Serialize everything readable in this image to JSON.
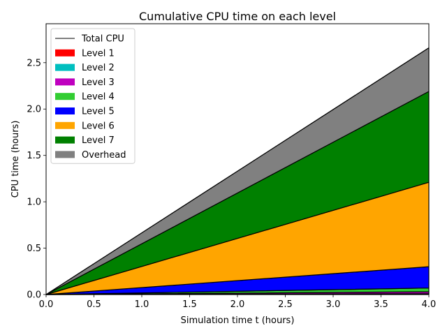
{
  "chart_data": {
    "type": "area",
    "stacked": true,
    "title": "Cumulative CPU time on each level",
    "xlabel": "Simulation time t (hours)",
    "ylabel": "CPU time (hours)",
    "xlim": [
      0,
      4.0
    ],
    "ylim": [
      0,
      2.92
    ],
    "xticks": [
      0.0,
      0.5,
      1.0,
      1.5,
      2.0,
      2.5,
      3.0,
      3.5,
      4.0
    ],
    "yticks": [
      0.0,
      0.5,
      1.0,
      1.5,
      2.0,
      2.5
    ],
    "xtick_labels": [
      "0.0",
      "0.5",
      "1.0",
      "1.5",
      "2.0",
      "2.5",
      "3.0",
      "3.5",
      "4.0"
    ],
    "ytick_labels": [
      "0.0",
      "0.5",
      "1.0",
      "1.5",
      "2.0",
      "2.5"
    ],
    "grid": false,
    "legend_position": "top-left",
    "x": [
      0.0,
      4.0
    ],
    "total_line": {
      "name": "Total CPU",
      "color": "#000000",
      "values": [
        0.0,
        2.66
      ]
    },
    "series": [
      {
        "name": "Level 1",
        "color": "#ff0000",
        "values": [
          0.0,
          0.005
        ]
      },
      {
        "name": "Level 2",
        "color": "#00bfbf",
        "values": [
          0.0,
          0.005
        ]
      },
      {
        "name": "Level 3",
        "color": "#bf00bf",
        "values": [
          0.0,
          0.02
        ]
      },
      {
        "name": "Level 4",
        "color": "#32cd32",
        "values": [
          0.0,
          0.04
        ]
      },
      {
        "name": "Level 5",
        "color": "#0000ff",
        "values": [
          0.0,
          0.23
        ]
      },
      {
        "name": "Level 6",
        "color": "#ffa500",
        "values": [
          0.0,
          0.91
        ]
      },
      {
        "name": "Level 7",
        "color": "#008000",
        "values": [
          0.0,
          0.98
        ]
      },
      {
        "name": "Overhead",
        "color": "#808080",
        "values": [
          0.0,
          0.47
        ]
      }
    ]
  }
}
